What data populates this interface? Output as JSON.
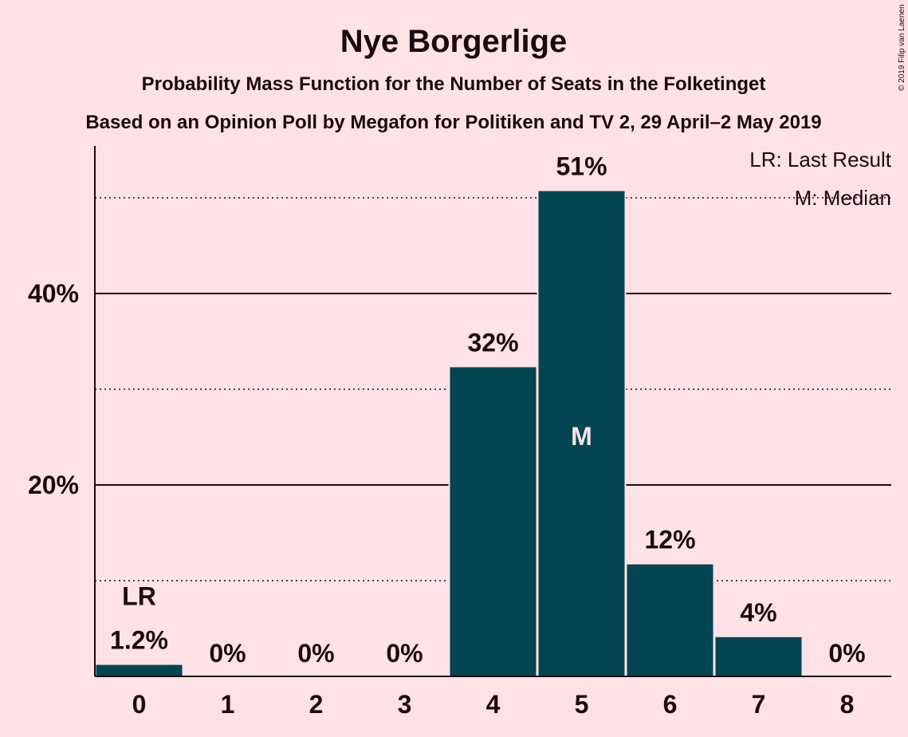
{
  "chart_data": {
    "type": "bar",
    "title": "Nye Borgerlige",
    "subtitle": "Probability Mass Function for the Number of Seats in the Folketinget",
    "subtitle2": "Based on an Opinion Poll by Megafon for Politiken and TV 2, 29 April–2 May 2019",
    "copyright": "© 2019 Filip van Laenen",
    "categories": [
      "0",
      "1",
      "2",
      "3",
      "4",
      "5",
      "6",
      "7",
      "8"
    ],
    "values": [
      1.2,
      0,
      0,
      0,
      32.3,
      50.7,
      11.7,
      4.1,
      0
    ],
    "value_labels": [
      "1.2%",
      "0%",
      "0%",
      "0%",
      "32%",
      "51%",
      "12%",
      "4%",
      "0%"
    ],
    "ylim": [
      0,
      55
    ],
    "y_ticks": [
      20,
      40
    ],
    "y_tick_labels": [
      "20%",
      "40%"
    ],
    "dotted_gridlines": [
      10,
      30,
      50
    ],
    "last_result_index": 0,
    "last_result_marker": "LR",
    "median_index": 5,
    "median_marker": "M",
    "legend": [
      "LR: Last Result",
      "M: Median"
    ],
    "legend_position": "top-right",
    "bar_color": "#024450"
  }
}
